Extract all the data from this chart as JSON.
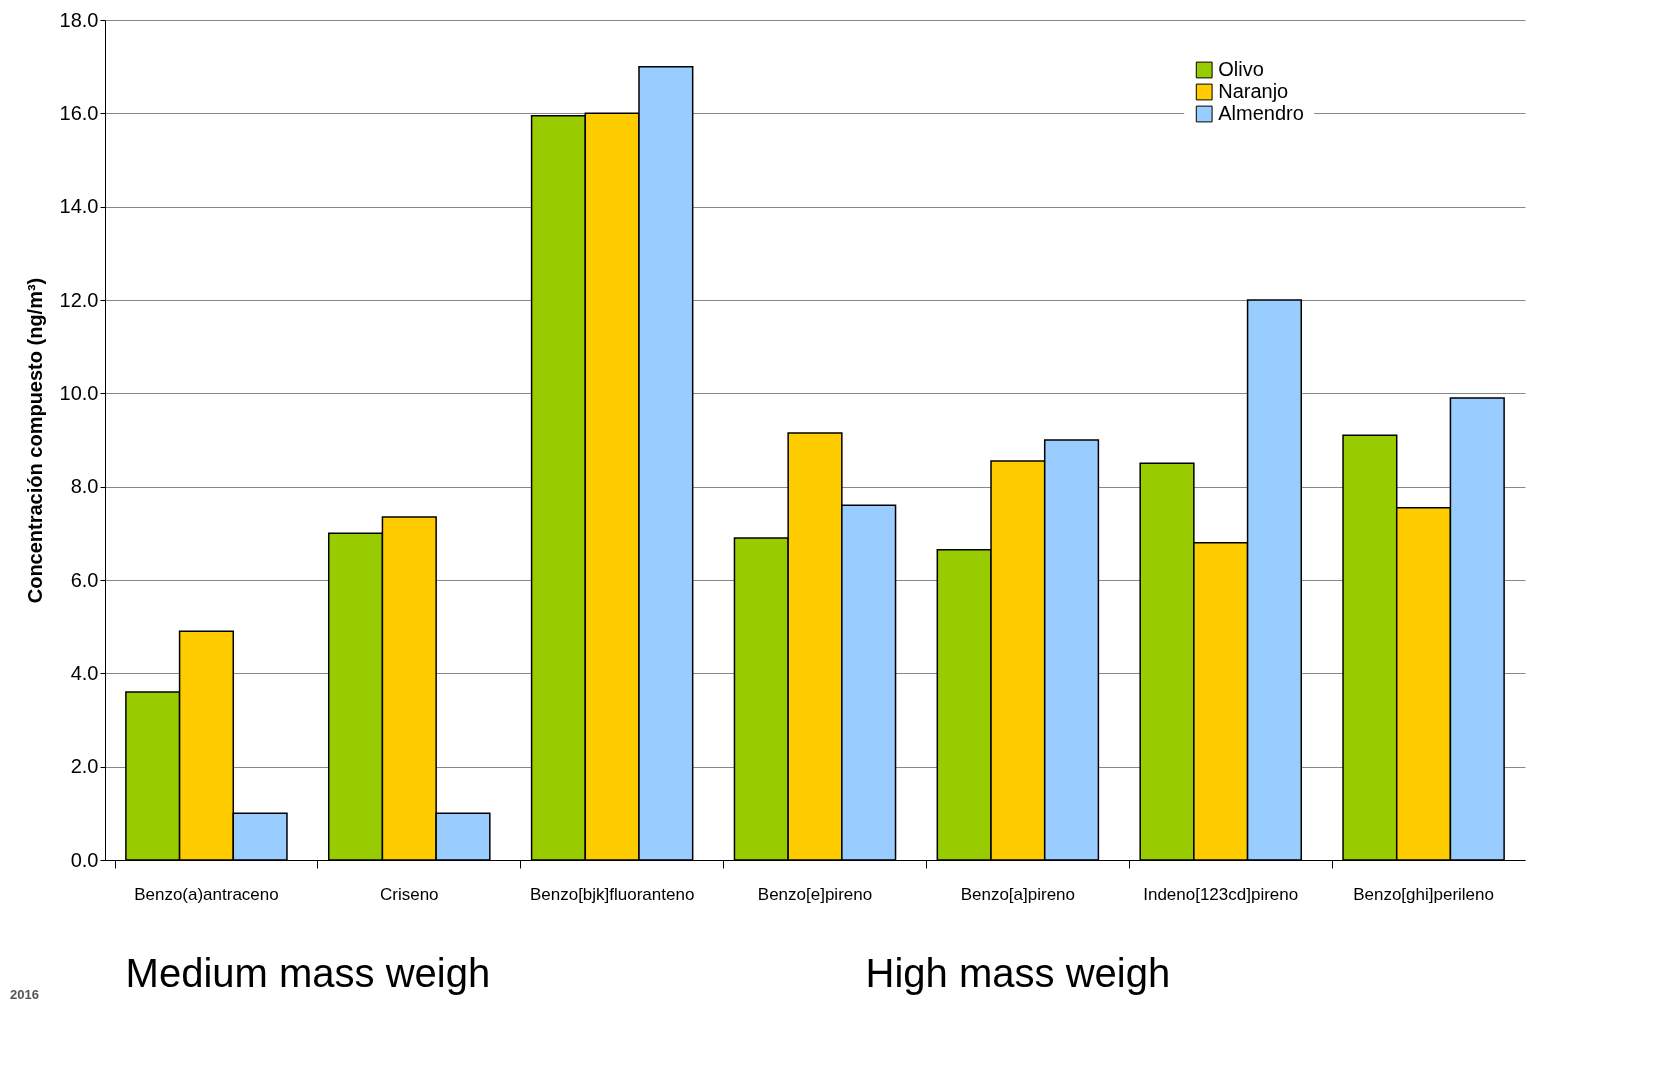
{
  "chart_data": {
    "type": "bar",
    "ylabel": "Concentración compuesto (ng/m³)",
    "categories": [
      "Benzo(a)antraceno",
      "Criseno",
      "Benzo[bjk]fluoranteno",
      "Benzo[e]pireno",
      "Benzo[a]pireno",
      "Indeno[123cd]pireno",
      "Benzo[ghi]perileno"
    ],
    "series": [
      {
        "name": "Olivo",
        "color": "#99cc00",
        "values": [
          3.6,
          7.0,
          15.95,
          6.9,
          6.65,
          8.5,
          9.1
        ]
      },
      {
        "name": "Naranjo",
        "color": "#ffcc00",
        "values": [
          4.9,
          7.35,
          16.0,
          9.15,
          8.55,
          6.8,
          7.55
        ]
      },
      {
        "name": "Almendro",
        "color": "#99ccff",
        "values": [
          1.0,
          1.0,
          17.0,
          7.6,
          9.0,
          12.0,
          9.9
        ]
      }
    ],
    "ylim": [
      0,
      18
    ],
    "yticks": [
      {
        "value": 0,
        "label": "0.0"
      },
      {
        "value": 2,
        "label": "2.0"
      },
      {
        "value": 4,
        "label": "4.0"
      },
      {
        "value": 6,
        "label": "6.0"
      },
      {
        "value": 8,
        "label": "8.0"
      },
      {
        "value": 10,
        "label": "10.0"
      },
      {
        "value": 12,
        "label": "12.0"
      },
      {
        "value": 14,
        "label": "14.0"
      },
      {
        "value": 16,
        "label": "16.0"
      },
      {
        "value": 18,
        "label": "18.0"
      }
    ],
    "grid": "y",
    "legend": "top right",
    "annotations": [
      "Medium mass weigh",
      "High mass weigh",
      "2016"
    ]
  }
}
